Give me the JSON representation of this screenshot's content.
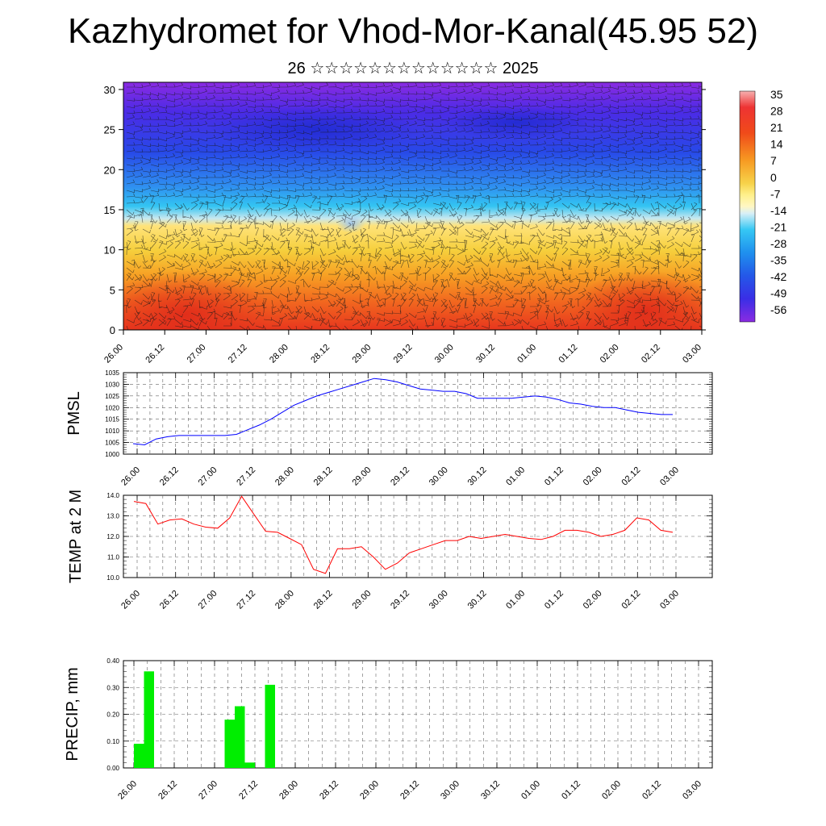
{
  "title": "Kazhydromet for Vhod-Mor-Kanal(45.95 52)",
  "subtitle": "26 ☆☆☆☆☆☆☆☆☆☆☆☆☆ 2025",
  "time_labels": [
    "26.00",
    "26.12",
    "27.00",
    "27.12",
    "28.00",
    "28.12",
    "29.00",
    "29.12",
    "30.00",
    "30.12",
    "01.00",
    "01.12",
    "02.00",
    "02.12",
    "03.00"
  ],
  "chart_data": [
    {
      "type": "heatmap",
      "yticks": [
        0,
        5,
        10,
        15,
        20,
        25,
        30
      ],
      "ylim": [
        0,
        30
      ],
      "colorbar": {
        "labels": [
          "35",
          "28",
          "21",
          "14",
          "7",
          "0",
          "-7",
          "-14",
          "-21",
          "-28",
          "-35",
          "-42",
          "-49",
          "-56"
        ],
        "values": [
          35,
          28,
          21,
          14,
          7,
          0,
          -7,
          -14,
          -21,
          -28,
          -35,
          -42,
          -49,
          -56
        ]
      }
    },
    {
      "type": "line",
      "ylabel": "PMSL",
      "ylim": [
        1000,
        1035
      ],
      "yticks": [
        1000,
        1005,
        1010,
        1015,
        1020,
        1025,
        1030,
        1035
      ],
      "color": "#0000ff",
      "values": [
        1004.5,
        1004,
        1006.5,
        1007.5,
        1008,
        1008,
        1008,
        1008,
        1008,
        1008.5,
        1010.5,
        1012.5,
        1015,
        1018,
        1021,
        1023,
        1025,
        1026.5,
        1028,
        1029.5,
        1031,
        1032.5,
        1032,
        1031,
        1029.5,
        1028,
        1027.5,
        1027,
        1027,
        1026,
        1024,
        1024,
        1024,
        1024,
        1024.5,
        1025,
        1024.5,
        1023.5,
        1022,
        1021.5,
        1020.5,
        1020,
        1020,
        1019,
        1018,
        1017.5,
        1017,
        1017
      ]
    },
    {
      "type": "line",
      "ylabel": "TEMP at 2 M",
      "ylim": [
        10.0,
        14.0
      ],
      "yticks": [
        10.0,
        11.0,
        12.0,
        13.0,
        14.0
      ],
      "color": "#ff0000",
      "values": [
        13.7,
        13.6,
        12.6,
        12.8,
        12.85,
        12.6,
        12.45,
        12.4,
        12.9,
        13.95,
        13.1,
        12.25,
        12.2,
        11.9,
        11.6,
        10.4,
        10.2,
        11.4,
        11.4,
        11.5,
        11.0,
        10.4,
        10.7,
        11.2,
        11.4,
        11.6,
        11.8,
        11.8,
        12.0,
        11.9,
        12.0,
        12.1,
        12.0,
        11.9,
        11.85,
        12.0,
        12.3,
        12.3,
        12.2,
        12.0,
        12.1,
        12.3,
        12.9,
        12.8,
        12.3,
        12.2
      ]
    },
    {
      "type": "bar",
      "ylabel": "PRECIP, mm",
      "ylim": [
        0,
        0.4
      ],
      "yticks": [
        0.0,
        0.1,
        0.2,
        0.3,
        0.4
      ],
      "color": "#00ee00",
      "values": [
        0.09,
        0.36,
        0,
        0,
        0,
        0,
        0,
        0,
        0,
        0.18,
        0.23,
        0.02,
        0,
        0.31,
        0,
        0,
        0,
        0,
        0,
        0,
        0,
        0,
        0,
        0,
        0,
        0,
        0,
        0,
        0,
        0,
        0,
        0,
        0,
        0,
        0,
        0,
        0,
        0,
        0,
        0,
        0,
        0,
        0,
        0,
        0,
        0,
        0,
        0,
        0,
        0,
        0,
        0,
        0,
        0,
        0,
        0
      ]
    }
  ]
}
